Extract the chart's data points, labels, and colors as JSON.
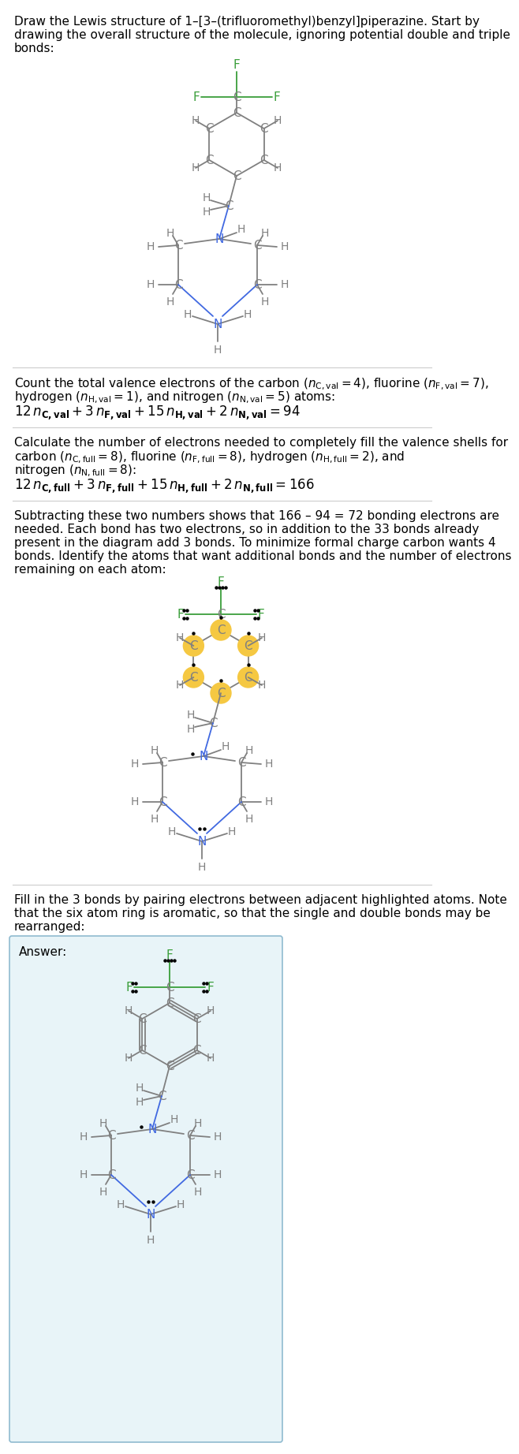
{
  "bg_color": "#ffffff",
  "text_color": "#000000",
  "C_color": "#808080",
  "F_color": "#3a9e3a",
  "N_color": "#4169e1",
  "H_color": "#808080",
  "bond_color": "#808080",
  "highlight_color": "#f5c842",
  "answer_bg": "#e8f4f8",
  "answer_border": "#90bbd0",
  "font_size_body": 11,
  "font_size_atom": 11,
  "font_size_H": 10,
  "line_width": 1.3,
  "section1_lines": [
    "Draw the Lewis structure of 1–[3–(trifluoromethyl)benzyl]piperazine. Start by",
    "drawing the overall structure of the molecule, ignoring potential double and triple",
    "bonds:"
  ],
  "section2_line1": "Count the total valence electrons of the carbon (",
  "section3_line1": "Calculate the number of electrons needed to completely fill the valence shells for",
  "section4_lines": [
    "Subtracting these two numbers shows that 166 – 94 = 72 bonding electrons are",
    "needed. Each bond has two electrons, so in addition to the 33 bonds already",
    "present in the diagram add 3 bonds. To minimize formal charge carbon wants 4",
    "bonds. Identify the atoms that want additional bonds and the number of electrons",
    "remaining on each atom:"
  ],
  "section5_lines": [
    "Fill in the 3 bonds by pairing electrons between adjacent highlighted atoms. Note",
    "that the six atom ring is aromatic, so that the single and double bonds may be",
    "rearranged:"
  ]
}
